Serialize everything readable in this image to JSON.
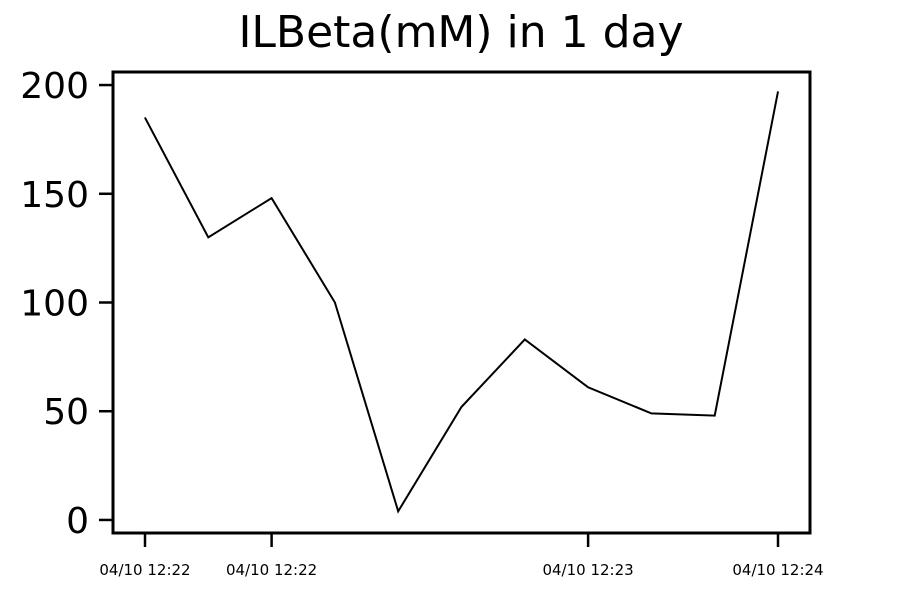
{
  "chart_data": {
    "type": "line",
    "title": "ILBeta(mM) in 1 day",
    "xlabel": "",
    "ylabel": "",
    "ylim": [
      -6,
      206
    ],
    "yticks": [
      0,
      50,
      100,
      150,
      200
    ],
    "x_tick_labels": [
      {
        "index": 0,
        "label": "04/10 12:22"
      },
      {
        "index": 2,
        "label": "04/10 12:22"
      },
      {
        "index": 7,
        "label": "04/10 12:23"
      },
      {
        "index": 10,
        "label": "04/10 12:24"
      }
    ],
    "series": [
      {
        "values": [
          185,
          130,
          148,
          100,
          4,
          52,
          83,
          61,
          49,
          48,
          197
        ]
      }
    ],
    "grid": false,
    "line_color": "#000000"
  }
}
